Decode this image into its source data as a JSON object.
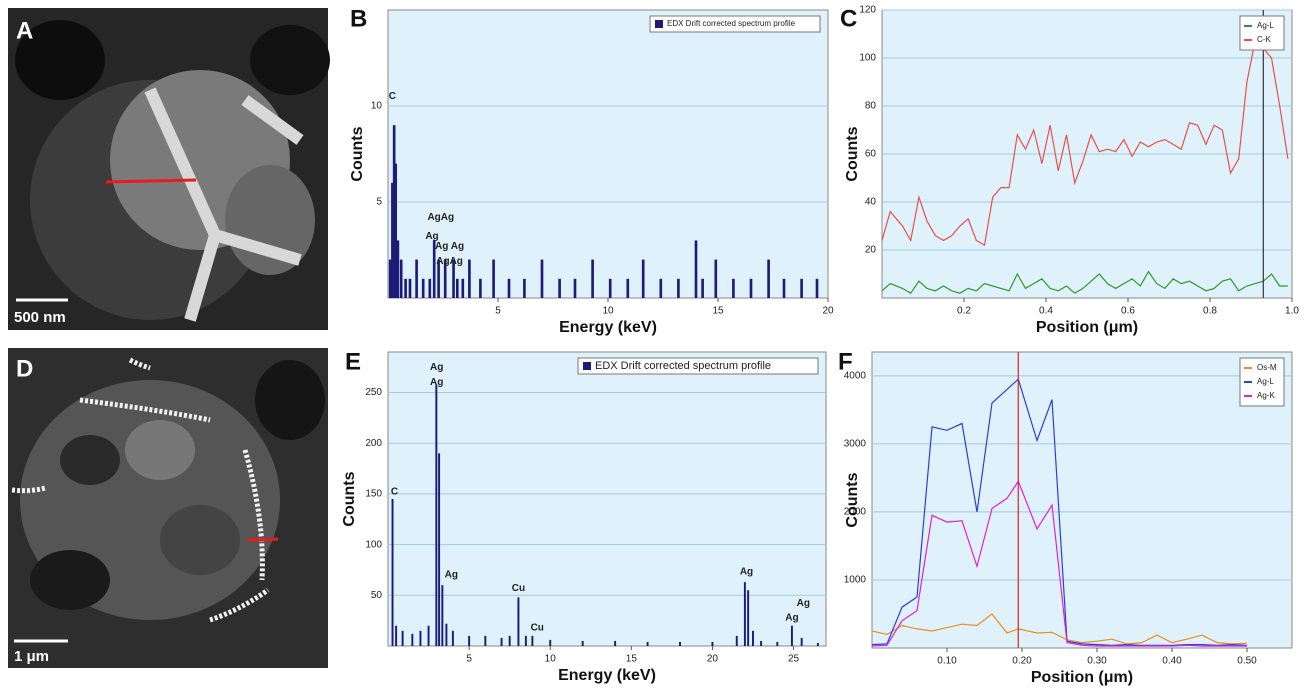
{
  "images": [
    {
      "label": "A",
      "scale_bar": "500 nm"
    },
    {
      "label": "D",
      "scale_bar": "1 μm"
    }
  ],
  "chart_data": [
    {
      "type": "bar",
      "label": "B",
      "xlabel": "Energy (keV)",
      "ylabel": "Counts",
      "x": [
        0.1,
        0.2,
        0.28,
        0.35,
        0.45,
        0.6,
        0.8,
        1.0,
        1.3,
        1.6,
        1.9,
        2.1,
        2.3,
        2.6,
        2.98,
        3.15,
        3.4,
        3.7,
        4.2,
        4.8,
        5.5,
        6.2,
        7.0,
        7.8,
        8.5,
        9.3,
        10.1,
        10.9,
        11.6,
        12.4,
        13.2,
        14.0,
        14.3,
        14.9,
        15.7,
        16.5,
        17.3,
        18.0,
        18.8,
        19.5
      ],
      "series": [
        {
          "name": "EDX Drift corrected spectrum profile",
          "color": "#1c1c78",
          "values": [
            2,
            6,
            9,
            7,
            3,
            2,
            1,
            1,
            2,
            1,
            1,
            3,
            2,
            2,
            2,
            1,
            1,
            2,
            1,
            2,
            1,
            1,
            2,
            1,
            1,
            2,
            1,
            1,
            2,
            1,
            1,
            3,
            1,
            2,
            1,
            1,
            2,
            1,
            1,
            1
          ]
        }
      ],
      "xlim": [
        0,
        20
      ],
      "xticks": [
        5,
        10,
        15,
        20
      ],
      "ylim": [
        0,
        15
      ],
      "yticks": [
        5,
        10
      ],
      "grid": true,
      "legend": "upper right",
      "annotations": [
        {
          "text": "C",
          "x": 0.2,
          "y": 10.5
        },
        {
          "text": "AgAg",
          "x": 2.4,
          "y": 4.2
        },
        {
          "text": "Ag",
          "x": 2.0,
          "y": 3.2
        },
        {
          "text": "Ag Ag",
          "x": 2.8,
          "y": 2.7
        },
        {
          "text": "AgAg",
          "x": 2.8,
          "y": 1.9
        }
      ]
    },
    {
      "type": "line",
      "label": "C",
      "xlabel": "Position (μm)",
      "ylabel": "Counts",
      "x": [
        0,
        0.02,
        0.05,
        0.07,
        0.09,
        0.11,
        0.13,
        0.15,
        0.17,
        0.19,
        0.21,
        0.23,
        0.25,
        0.27,
        0.29,
        0.31,
        0.33,
        0.35,
        0.37,
        0.39,
        0.41,
        0.43,
        0.45,
        0.47,
        0.49,
        0.51,
        0.53,
        0.55,
        0.57,
        0.59,
        0.61,
        0.63,
        0.65,
        0.67,
        0.69,
        0.71,
        0.73,
        0.75,
        0.77,
        0.79,
        0.81,
        0.83,
        0.85,
        0.87,
        0.89,
        0.91,
        0.93,
        0.95,
        0.97,
        0.99
      ],
      "series": [
        {
          "name": "Ag-L",
          "color": "#2e9a2e",
          "values": [
            3,
            6,
            4,
            2,
            7,
            4,
            3,
            5,
            3,
            2,
            4,
            3,
            6,
            5,
            4,
            3,
            10,
            4,
            6,
            8,
            4,
            3,
            5,
            2,
            4,
            7,
            10,
            6,
            4,
            6,
            8,
            5,
            11,
            6,
            4,
            8,
            6,
            7,
            5,
            3,
            4,
            7,
            8,
            3,
            5,
            6,
            7,
            10,
            5,
            5
          ]
        },
        {
          "name": "C-K",
          "color": "#e8504a",
          "values": [
            24,
            36,
            30,
            24,
            42,
            32,
            26,
            24,
            26,
            30,
            33,
            24,
            22,
            42,
            46,
            46,
            68,
            62,
            70,
            56,
            72,
            53,
            68,
            48,
            57,
            68,
            61,
            62,
            61,
            66,
            59,
            65,
            63,
            65,
            66,
            64,
            62,
            73,
            72,
            64,
            72,
            70,
            52,
            58,
            90,
            107,
            104,
            100,
            80,
            58
          ]
        }
      ],
      "xlim": [
        0,
        1
      ],
      "xticks": [
        0.2,
        0.4,
        0.6,
        0.8,
        {
          "value": 1,
          "label": "1.0"
        }
      ],
      "ylim": [
        0,
        120
      ],
      "yticks": [
        20,
        40,
        60,
        80,
        100,
        120
      ],
      "grid": true,
      "legend": "upper right",
      "cursor": 0.93,
      "cursor_color": "#333333"
    },
    {
      "type": "bar",
      "label": "E",
      "xlabel": "Energy (keV)",
      "ylabel": "Counts",
      "x": [
        0.28,
        0.5,
        0.9,
        1.5,
        2.0,
        2.5,
        2.98,
        3.15,
        3.35,
        3.6,
        4.0,
        5,
        6,
        7,
        7.5,
        8.04,
        8.5,
        8.9,
        10,
        12,
        14,
        16,
        18,
        20,
        21.5,
        22.0,
        22.2,
        22.5,
        23,
        24,
        24.9,
        25.5,
        26.5
      ],
      "series": [
        {
          "name": "EDX Drift corrected spectrum profile",
          "color": "#1c1c78",
          "values": [
            145,
            20,
            15,
            12,
            15,
            20,
            258,
            190,
            60,
            22,
            15,
            10,
            10,
            8,
            10,
            48,
            10,
            10,
            6,
            5,
            5,
            4,
            4,
            4,
            10,
            63,
            55,
            15,
            5,
            4,
            20,
            8,
            3
          ]
        }
      ],
      "xlim": [
        0,
        27
      ],
      "xticks": [
        5,
        10,
        15,
        20,
        25
      ],
      "ylim": [
        0,
        290
      ],
      "yticks": [
        50,
        100,
        150,
        200,
        250
      ],
      "grid": true,
      "legend": "upper right",
      "annotations": [
        {
          "text": "C",
          "x": 0.4,
          "y": 152
        },
        {
          "text": "Ag",
          "x": 3.0,
          "y": 275
        },
        {
          "text": "Ag",
          "x": 3.0,
          "y": 260
        },
        {
          "text": "Ag",
          "x": 3.9,
          "y": 70
        },
        {
          "text": "Cu",
          "x": 8.04,
          "y": 57
        },
        {
          "text": "Cu",
          "x": 9.2,
          "y": 18
        },
        {
          "text": "Ag",
          "x": 22.1,
          "y": 73
        },
        {
          "text": "Ag",
          "x": 25.6,
          "y": 42
        },
        {
          "text": "Ag",
          "x": 24.9,
          "y": 28
        }
      ]
    },
    {
      "type": "line",
      "label": "F",
      "xlabel": "Position (μm)",
      "ylabel": "Counts",
      "x": [
        0,
        0.02,
        0.04,
        0.06,
        0.08,
        0.1,
        0.12,
        0.14,
        0.16,
        0.18,
        0.195,
        0.22,
        0.24,
        0.26,
        0.28,
        0.3,
        0.32,
        0.34,
        0.36,
        0.38,
        0.4,
        0.42,
        0.44,
        0.46,
        0.48,
        0.5
      ],
      "series": [
        {
          "name": "Os-M",
          "color": "#e8901c",
          "values": [
            250,
            200,
            330,
            280,
            250,
            300,
            350,
            330,
            500,
            220,
            280,
            220,
            230,
            120,
            80,
            100,
            130,
            60,
            80,
            190,
            80,
            130,
            190,
            80,
            60,
            70
          ]
        },
        {
          "name": "Ag-L",
          "color": "#2b3fd6",
          "values": [
            50,
            60,
            600,
            750,
            3250,
            3200,
            3300,
            2000,
            3600,
            3800,
            3950,
            3050,
            3650,
            100,
            60,
            50,
            40,
            50,
            40,
            40,
            40,
            50,
            50,
            40,
            50,
            40
          ]
        },
        {
          "name": "Ag-K",
          "color": "#e020d8",
          "values": [
            30,
            40,
            400,
            550,
            1950,
            1850,
            1870,
            1200,
            2050,
            2200,
            2450,
            1750,
            2100,
            80,
            40,
            30,
            30,
            30,
            30,
            30,
            30,
            40,
            30,
            30,
            30,
            30
          ]
        }
      ],
      "xlim": [
        0,
        0.56
      ],
      "xticks": [
        {
          "value": 0.1,
          "label": "0.10"
        },
        {
          "value": 0.2,
          "label": "0.20"
        },
        {
          "value": 0.3,
          "label": "0.30"
        },
        {
          "value": 0.4,
          "label": "0.40"
        },
        {
          "value": 0.5,
          "label": "0.50"
        }
      ],
      "ylim": [
        0,
        4350
      ],
      "yticks": [
        1000,
        2000,
        3000,
        4000
      ],
      "grid": true,
      "legend": "upper right",
      "cursor": 0.195,
      "cursor_color": "#e02020"
    }
  ]
}
